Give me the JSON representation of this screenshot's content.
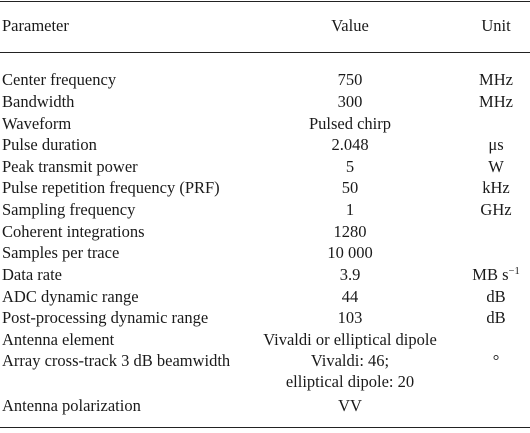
{
  "table": {
    "headers": {
      "parameter": "Parameter",
      "value": "Value",
      "unit": "Unit"
    },
    "rows": [
      {
        "parameter": "Center frequency",
        "value": "750",
        "unit": "MHz"
      },
      {
        "parameter": "Bandwidth",
        "value": "300",
        "unit": "MHz"
      },
      {
        "parameter": "Waveform",
        "value": "Pulsed chirp",
        "unit": ""
      },
      {
        "parameter": "Pulse duration",
        "value": "2.048",
        "unit": "μs"
      },
      {
        "parameter": "Peak transmit power",
        "value": "5",
        "unit": "W"
      },
      {
        "parameter": "Pulse repetition frequency (PRF)",
        "value": "50",
        "unit": "kHz"
      },
      {
        "parameter": "Sampling frequency",
        "value": "1",
        "unit": "GHz"
      },
      {
        "parameter": "Coherent integrations",
        "value": "1280",
        "unit": ""
      },
      {
        "parameter": "Samples per trace",
        "value": "10 000",
        "unit": ""
      },
      {
        "parameter": "Data rate",
        "value": "3.9",
        "unit": "MB s",
        "unit_sup": "−1"
      },
      {
        "parameter": "ADC dynamic range",
        "value": "44",
        "unit": "dB"
      },
      {
        "parameter": "Post-processing dynamic range",
        "value": "103",
        "unit": "dB"
      },
      {
        "parameter": "Antenna element",
        "value": "Vivaldi or elliptical dipole",
        "unit": ""
      },
      {
        "parameter": "Array cross-track 3 dB beamwidth",
        "value": "Vivaldi: 46;",
        "value_line2": "elliptical dipole: 20",
        "unit": "°"
      },
      {
        "parameter": "Antenna polarization",
        "value": "VV",
        "unit": ""
      }
    ]
  }
}
